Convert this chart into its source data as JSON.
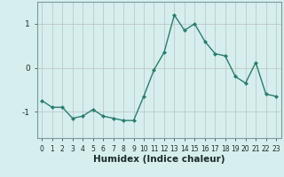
{
  "x": [
    0,
    1,
    2,
    3,
    4,
    5,
    6,
    7,
    8,
    9,
    10,
    11,
    12,
    13,
    14,
    15,
    16,
    17,
    18,
    19,
    20,
    21,
    22,
    23
  ],
  "y": [
    -0.75,
    -0.9,
    -0.9,
    -1.15,
    -1.1,
    -0.95,
    -1.1,
    -1.15,
    -1.2,
    -1.2,
    -0.65,
    -0.05,
    0.35,
    1.2,
    0.85,
    1.0,
    0.6,
    0.32,
    0.27,
    -0.2,
    -0.35,
    0.12,
    -0.6,
    -0.65
  ],
  "line_color": "#2a7d6e",
  "marker": "D",
  "marker_size": 2.0,
  "bg_color": "#d6eeee",
  "grid_color": "#c0c8c8",
  "xlabel": "Humidex (Indice chaleur)",
  "xlim": [
    -0.5,
    23.5
  ],
  "ylim": [
    -1.6,
    1.5
  ],
  "yticks": [
    -1,
    0,
    1
  ],
  "xticks": [
    0,
    1,
    2,
    3,
    4,
    5,
    6,
    7,
    8,
    9,
    10,
    11,
    12,
    13,
    14,
    15,
    16,
    17,
    18,
    19,
    20,
    21,
    22,
    23
  ],
  "tick_fontsize": 5.5,
  "xlabel_fontsize": 7.5
}
